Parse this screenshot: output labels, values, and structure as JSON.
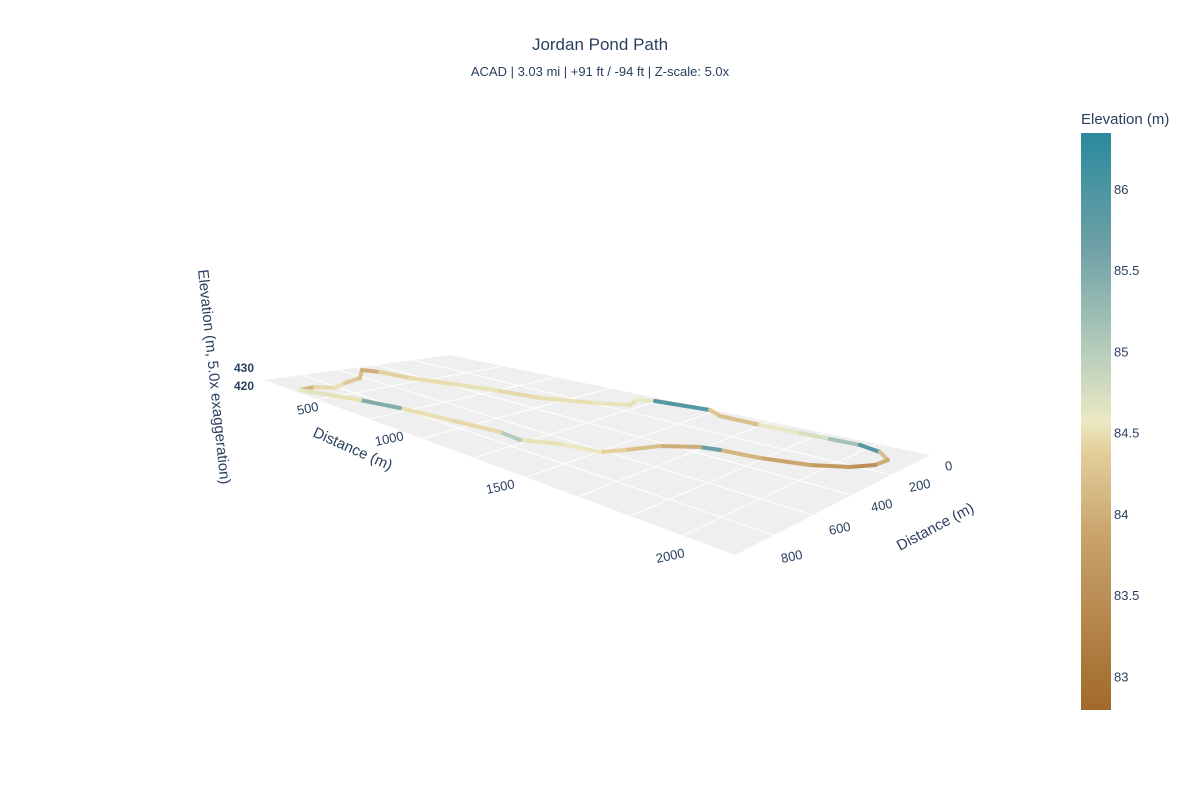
{
  "chart_data": {
    "type": "line3d",
    "title": "Jordan Pond Path",
    "subtitle": "ACAD | 3.03 mi | +91 ft / -94 ft | Z-scale: 5.0x",
    "x_axis": {
      "label": "Distance (m)",
      "ticks": [
        "500",
        "1000",
        "1500",
        "2000"
      ]
    },
    "y_axis": {
      "label": "Distance (m)",
      "ticks": [
        "0",
        "200",
        "400",
        "600",
        "800"
      ]
    },
    "z_axis": {
      "label": "Elevation (m, 5.0x exaggeration)",
      "ticks": [
        "430",
        "420"
      ]
    },
    "colorbar": {
      "title": "Elevation (m)",
      "ticks": [
        "86",
        "85.5",
        "85",
        "84.5",
        "84",
        "83.5",
        "83"
      ],
      "range": [
        82.8,
        86.35
      ]
    },
    "colorscale": [
      "#a0692a",
      "#c9a36b",
      "#e8d9a8",
      "#ebe9c4",
      "#b6cdbb",
      "#6fa1a6",
      "#2a8a9e"
    ],
    "segment_elevations": [
      83.6,
      84.0,
      84.2,
      83.8,
      83.7,
      83.5,
      83.9,
      84.1,
      84.3,
      84.0,
      84.2,
      84.4,
      84.2,
      84.6,
      86.0,
      83.8,
      83.7,
      84.6,
      84.8,
      85.3,
      86.0,
      83.7,
      83.5,
      83.2,
      83.3,
      83.4,
      83.6,
      85.8,
      83.5,
      83.7,
      83.9,
      84.5,
      84.3,
      85.2,
      84.0,
      84.2,
      85.6,
      84.3,
      84.7,
      84.5
    ]
  }
}
